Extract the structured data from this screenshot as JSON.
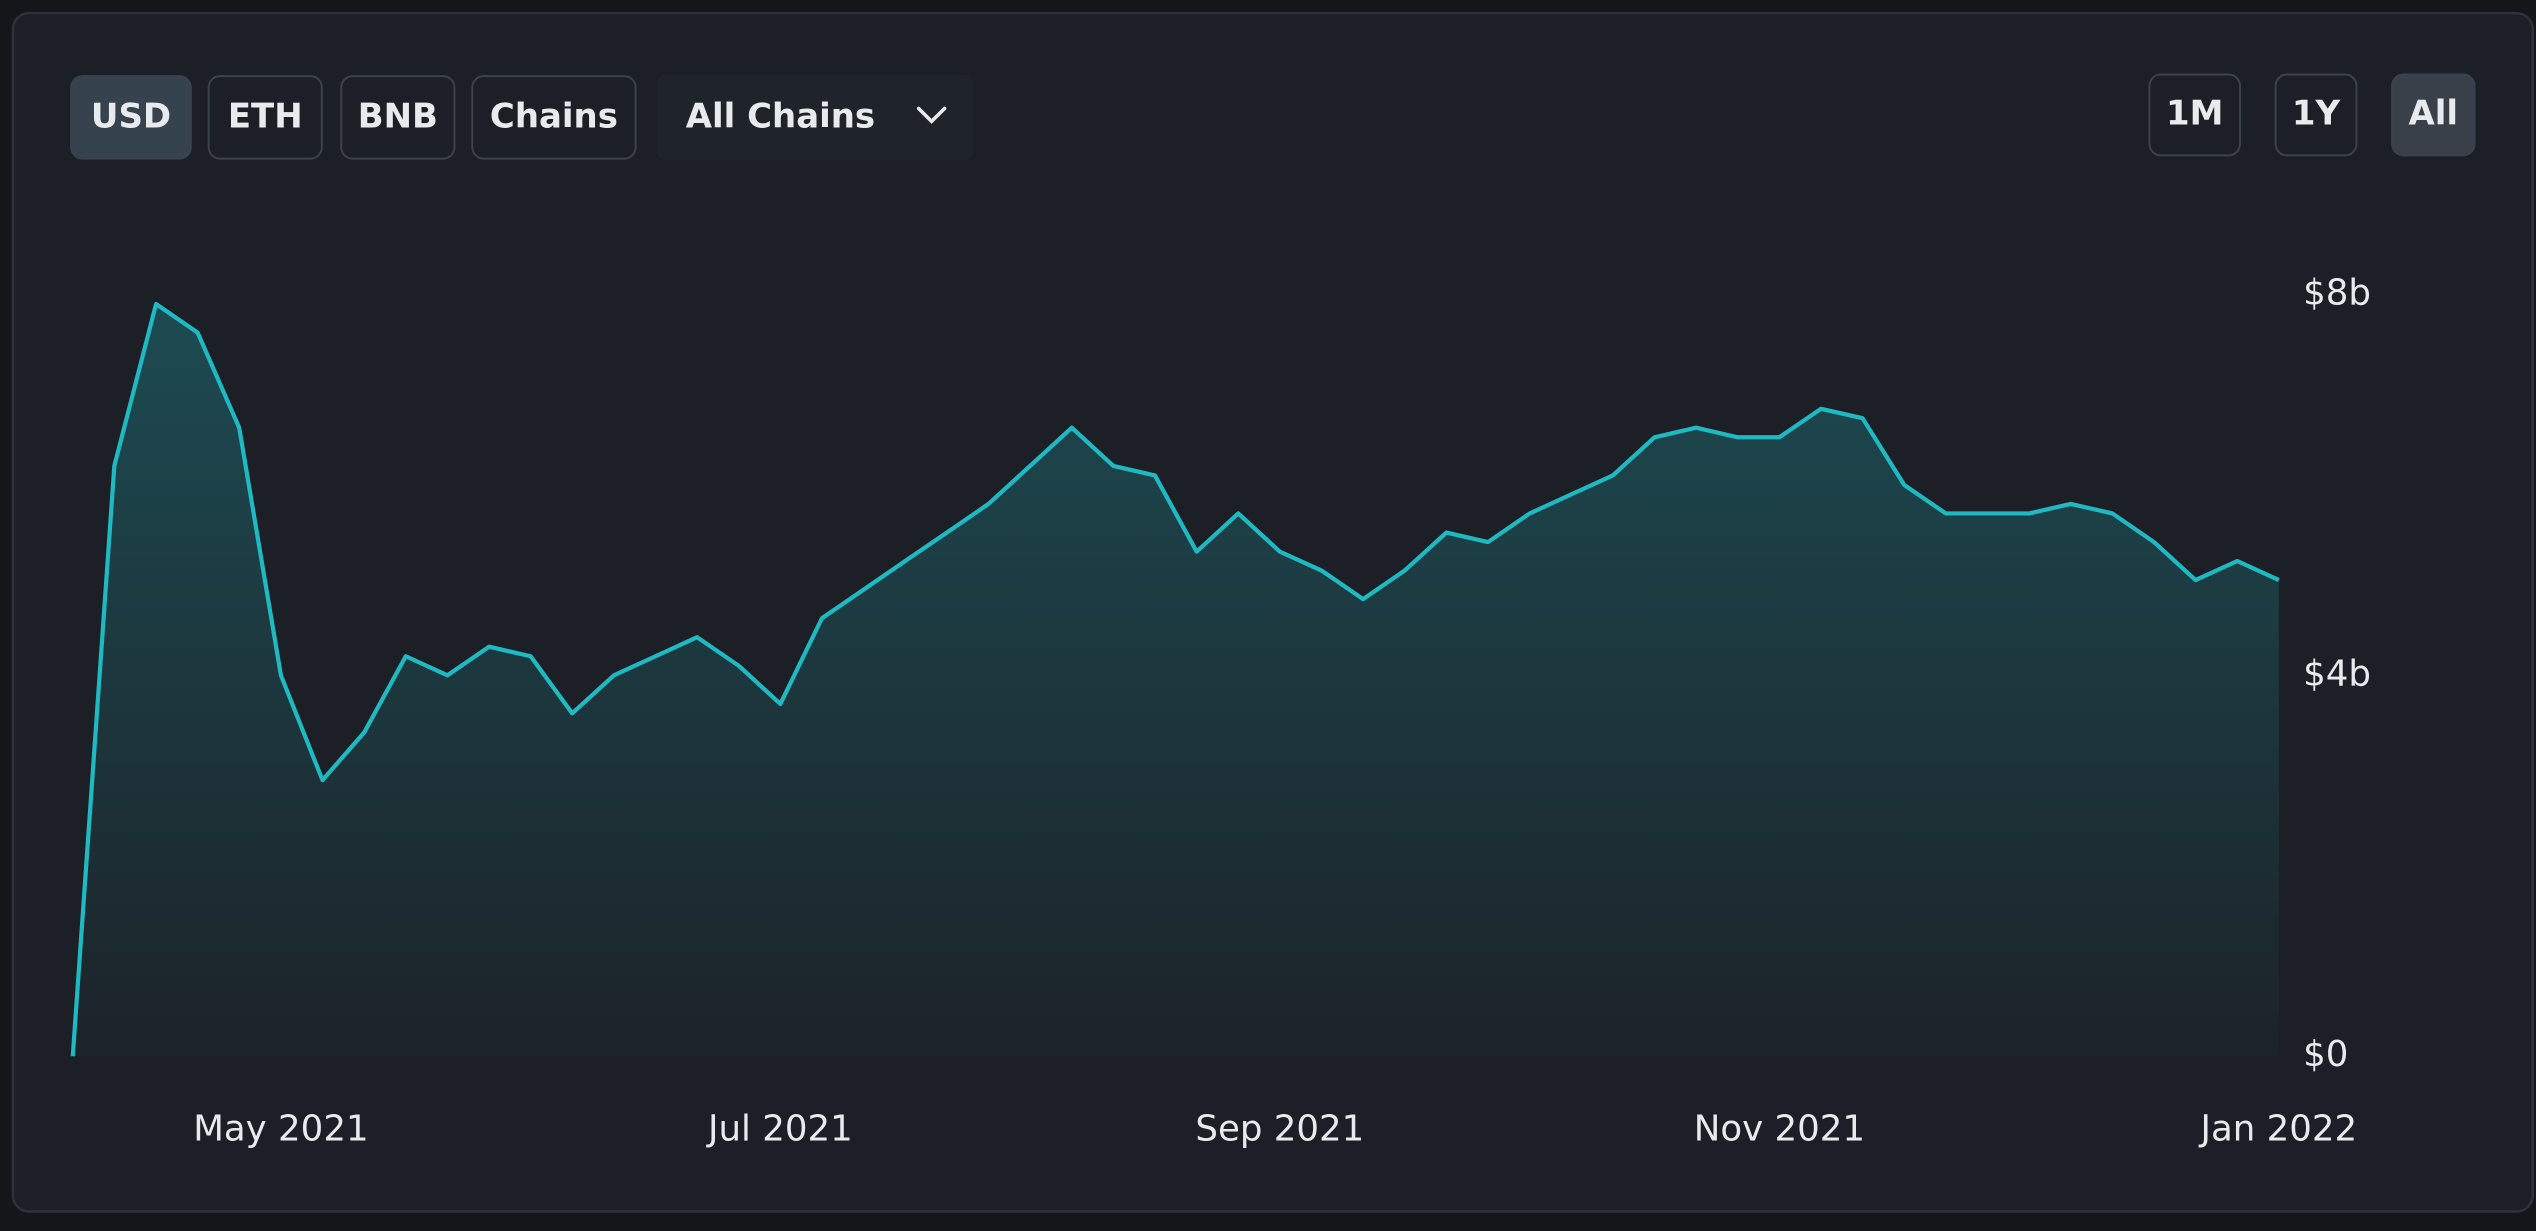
{
  "toolbar": {
    "denominations": [
      "USD",
      "ETH",
      "BNB",
      "Chains"
    ],
    "chain_select": "All Chains",
    "ranges": [
      "1M",
      "1Y",
      "All"
    ]
  },
  "chart_data": {
    "type": "area",
    "x": [
      "2021-04",
      "2021-04",
      "2021-04",
      "2021-04",
      "2021-04",
      "2021-05",
      "2021-05",
      "2021-05",
      "2021-05",
      "2021-05",
      "2021-05",
      "2021-06",
      "2021-06",
      "2021-06",
      "2021-06",
      "2021-06",
      "2021-06",
      "2021-07",
      "2021-07",
      "2021-07",
      "2021-07",
      "2021-07",
      "2021-07",
      "2021-08",
      "2021-08",
      "2021-08",
      "2021-08",
      "2021-08",
      "2021-08",
      "2021-09",
      "2021-09",
      "2021-09",
      "2021-09",
      "2021-09",
      "2021-09",
      "2021-10",
      "2021-10",
      "2021-10",
      "2021-10",
      "2021-10",
      "2021-10",
      "2021-11",
      "2021-11",
      "2021-11",
      "2021-11",
      "2021-11",
      "2021-11",
      "2021-12",
      "2021-12",
      "2021-12",
      "2021-12",
      "2021-12",
      "2021-12",
      "2022-01"
    ],
    "values": [
      0,
      6.2,
      7.9,
      7.6,
      6.6,
      4.0,
      2.9,
      3.4,
      4.2,
      4.0,
      4.3,
      4.2,
      3.6,
      4.0,
      4.2,
      4.4,
      4.1,
      3.7,
      4.6,
      4.9,
      5.2,
      5.5,
      5.8,
      6.2,
      6.6,
      6.2,
      6.1,
      5.3,
      5.7,
      5.3,
      5.1,
      4.8,
      5.1,
      5.5,
      5.4,
      5.7,
      5.9,
      6.1,
      6.5,
      6.6,
      6.5,
      6.5,
      6.8,
      6.7,
      6.0,
      5.7,
      5.7,
      5.7,
      5.8,
      5.7,
      5.4,
      5.0,
      5.2,
      5.0
    ],
    "color": "#1fb9c2",
    "ylim": [
      0,
      8
    ],
    "yticks": [
      {
        "value": 0,
        "label": "$0"
      },
      {
        "value": 4,
        "label": "$4b"
      },
      {
        "value": 8,
        "label": "$8b"
      }
    ],
    "xticks": [
      {
        "value": "2021-05",
        "label": "May 2021"
      },
      {
        "value": "2021-07",
        "label": "Jul 2021"
      },
      {
        "value": "2021-09",
        "label": "Sep 2021"
      },
      {
        "value": "2021-11",
        "label": "Nov 2021"
      },
      {
        "value": "2022-01",
        "label": "Jan 2022"
      }
    ]
  }
}
